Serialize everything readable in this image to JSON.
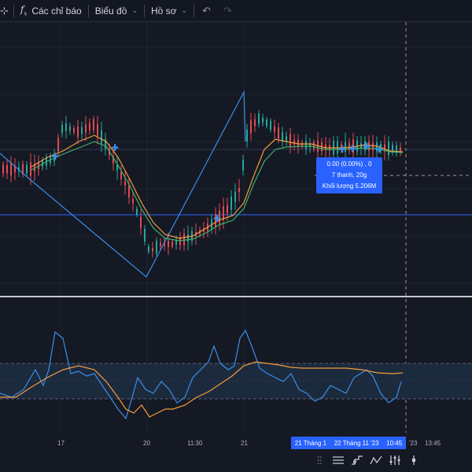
{
  "toolbar": {
    "indicators_label": "Các chỉ báo",
    "chart_label": "Biểu đồ",
    "profile_label": "Hồ sơ"
  },
  "tooltip": {
    "line1": "0.00 (0.00%) , 0",
    "line2": "7 thanh, 20g",
    "line3": "Khối lượng 5.206M"
  },
  "time_axis": {
    "labels": [
      "17",
      "20",
      "11:30",
      "21",
      "'23",
      "13:45"
    ],
    "selection": {
      "start": "21 Tháng 1",
      "end": "22 Tháng 11 '23",
      "time": "10:45"
    }
  },
  "colors": {
    "background": "#151924",
    "accent": "#2962ff",
    "line_blue": "#3a8ee6",
    "ema_orange": "#f39c3a",
    "ema_green": "#3bb06a",
    "candle_red": "#e04b54",
    "candle_green": "#26a69a"
  },
  "icons": {
    "crosshair": "crosshair-icon",
    "fx": "function-icon",
    "undo": "undo-icon",
    "redo": "redo-icon",
    "bottom_tools": [
      "ruler-icon",
      "step-line-icon",
      "trend-icon",
      "bars-icon",
      "sliders-icon",
      "vertical-line-icon"
    ]
  }
}
